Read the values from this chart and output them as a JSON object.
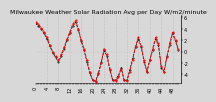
{
  "title": "Milwaukee Weather Solar Radiation Avg per Day W/m2/minute",
  "background_color": "#d8d8d8",
  "plot_bg_color": "#d8d8d8",
  "grid_color": "#aaaaaa",
  "red_color": "#ff0000",
  "black_color": "#000000",
  "ylim": [
    -5.5,
    6.5
  ],
  "xlim": [
    0,
    51
  ],
  "yticks": [
    6,
    4,
    2,
    0,
    -2,
    -4
  ],
  "title_fontsize": 4.5,
  "tick_fontsize": 3.5,
  "x_values": [
    0,
    1,
    2,
    3,
    4,
    5,
    6,
    7,
    8,
    9,
    10,
    11,
    12,
    13,
    14,
    15,
    16,
    17,
    18,
    19,
    20,
    21,
    22,
    23,
    24,
    25,
    26,
    27,
    28,
    29,
    30,
    31,
    32,
    33,
    34,
    35,
    36,
    37,
    38,
    39,
    40,
    41,
    42,
    43,
    44,
    45,
    46,
    47,
    48,
    49,
    50
  ],
  "red_values": [
    5.2,
    4.8,
    4.2,
    3.5,
    2.5,
    1.2,
    0.0,
    -0.8,
    -1.5,
    -0.5,
    0.8,
    2.2,
    3.5,
    4.8,
    5.5,
    4.0,
    2.0,
    0.5,
    -1.5,
    -3.5,
    -5.0,
    -5.3,
    -4.0,
    -2.0,
    0.5,
    -0.5,
    -3.0,
    -5.0,
    -5.2,
    -4.5,
    -3.0,
    -5.0,
    -5.2,
    -3.5,
    -1.5,
    1.0,
    2.5,
    1.0,
    -1.5,
    -3.5,
    -1.5,
    0.5,
    2.5,
    1.5,
    -2.5,
    -3.5,
    -1.0,
    1.5,
    3.5,
    2.0,
    0.5
  ],
  "black_values": [
    5.0,
    4.5,
    4.0,
    3.2,
    2.2,
    1.0,
    -0.2,
    -1.0,
    -1.8,
    -0.8,
    0.5,
    2.0,
    3.2,
    4.5,
    5.2,
    3.8,
    1.8,
    0.2,
    -1.8,
    -3.8,
    -5.0,
    -5.2,
    -3.8,
    -1.8,
    0.2,
    -0.8,
    -3.2,
    -5.0,
    -5.0,
    -4.2,
    -2.8,
    -5.0,
    -5.0,
    -3.2,
    -1.2,
    0.8,
    2.2,
    0.8,
    -1.8,
    -3.5,
    -1.5,
    0.2,
    2.2,
    1.2,
    -2.8,
    -3.5,
    -0.8,
    1.2,
    3.2,
    1.8,
    0.2
  ],
  "grid_x_positions": [
    4,
    8,
    12,
    16,
    20,
    24,
    28,
    32,
    36,
    40,
    44,
    48
  ],
  "x_tick_labels": [
    "0",
    "",
    "",
    "",
    "4",
    "",
    "",
    "",
    "8",
    "",
    "",
    "",
    "12",
    "",
    "",
    "",
    "16",
    "",
    "",
    "",
    "20",
    "",
    "",
    "",
    "24",
    "",
    "",
    "",
    "28",
    "",
    "",
    "",
    "32",
    "",
    "",
    "",
    "36",
    "",
    "",
    "",
    "40",
    "",
    "",
    "",
    "44",
    "",
    "",
    "",
    "48",
    "",
    ""
  ]
}
